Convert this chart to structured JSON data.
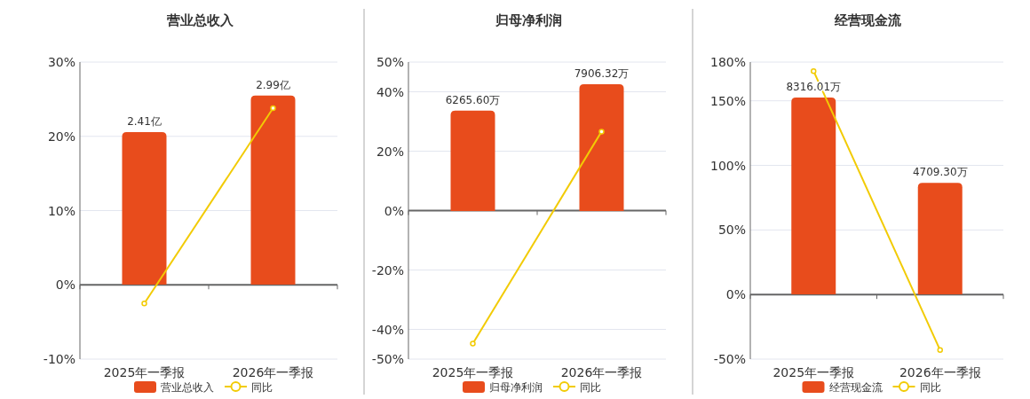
{
  "chart_data": [
    {
      "type": "bar",
      "title": "营业总收入",
      "categories": [
        "2025年一季报",
        "2026年一季报"
      ],
      "series": [
        {
          "name": "营业总收入",
          "color": "#e84c1c",
          "values": [
            2.41,
            2.99
          ],
          "axis": "y2",
          "value_labels": [
            "2.41亿",
            "2.99亿"
          ]
        },
        {
          "name": "同比",
          "type": "line",
          "color": "#f2cb05",
          "values": [
            -2.5,
            23.8
          ],
          "marker": "circle"
        }
      ],
      "ylim": [
        -10,
        30
      ],
      "yticks": [
        {
          "value": -10,
          "label": "-10%"
        },
        {
          "value": 0,
          "label": "0%"
        },
        {
          "value": 10,
          "label": "10%"
        },
        {
          "value": 20,
          "label": "20%"
        },
        {
          "value": 30,
          "label": "30%"
        }
      ],
      "y2lim": [
        -1.18,
        3.52
      ],
      "grid": "y",
      "legend": "bottom"
    },
    {
      "type": "bar",
      "title": "归母净利润",
      "categories": [
        "2025年一季报",
        "2026年一季报"
      ],
      "series": [
        {
          "name": "归母净利润",
          "color": "#e84c1c",
          "values": [
            6265.6,
            7906.32
          ],
          "axis": "y2",
          "value_labels": [
            "6265.60万",
            "7906.32万"
          ]
        },
        {
          "name": "同比",
          "type": "line",
          "color": "#f2cb05",
          "values": [
            -44.8,
            26.6
          ],
          "marker": "circle"
        }
      ],
      "ylim": [
        -50,
        50
      ],
      "yticks": [
        {
          "value": -50,
          "label": "-50%"
        },
        {
          "value": -40,
          "label": "-40%"
        },
        {
          "value": -20,
          "label": "-20%"
        },
        {
          "value": 0,
          "label": "0%"
        },
        {
          "value": 20,
          "label": "20%"
        },
        {
          "value": 40,
          "label": "40%"
        },
        {
          "value": 50,
          "label": "50%"
        }
      ],
      "y2lim": [
        -9230,
        9290
      ],
      "grid": "y",
      "legend": "bottom"
    },
    {
      "type": "bar",
      "title": "经营现金流",
      "categories": [
        "2025年一季报",
        "2026年一季报"
      ],
      "series": [
        {
          "name": "经营现金流",
          "color": "#e84c1c",
          "values": [
            8316.01,
            4709.3
          ],
          "axis": "y2",
          "value_labels": [
            "8316.01万",
            "4709.30万"
          ]
        },
        {
          "name": "同比",
          "type": "line",
          "color": "#f2cb05",
          "values": [
            173,
            -43
          ],
          "marker": "circle"
        }
      ],
      "ylim": [
        -50,
        180
      ],
      "yticks": [
        {
          "value": -50,
          "label": "-50%"
        },
        {
          "value": 0,
          "label": "0%"
        },
        {
          "value": 50,
          "label": "50%"
        },
        {
          "value": 100,
          "label": "100%"
        },
        {
          "value": 150,
          "label": "150%"
        },
        {
          "value": 180,
          "label": "180%"
        }
      ],
      "y2lim": [
        -2735,
        9815
      ],
      "grid": "y",
      "legend": "bottom"
    }
  ]
}
